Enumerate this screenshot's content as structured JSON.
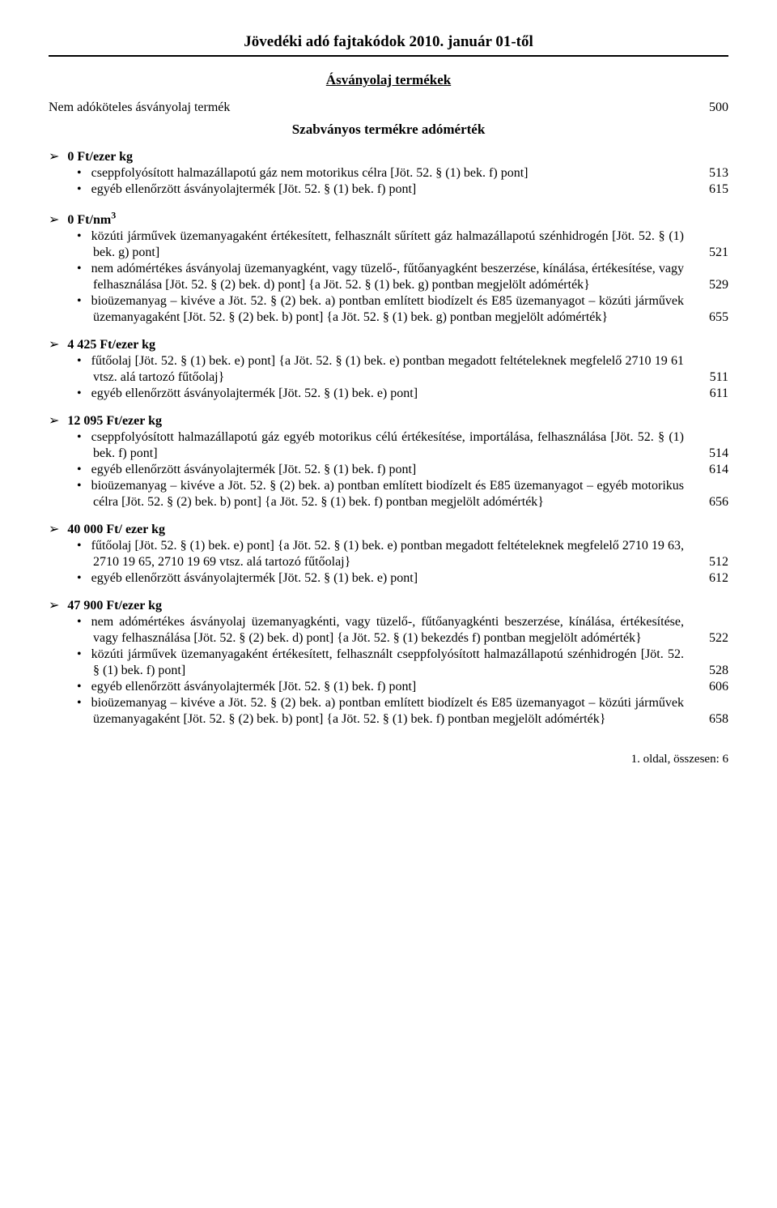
{
  "title": "Jövedéki adó fajtakódok 2010. január 01-től",
  "section_heading": "Ásványolaj termékek",
  "line1": {
    "label": "Nem adóköteles ásványolaj termék",
    "code": "500"
  },
  "standard_heading": "Szabványos termékre adómérték",
  "groups": [
    {
      "header": "0 Ft/ezer kg",
      "items": [
        {
          "text": "cseppfolyósított halmazállapotú gáz nem motorikus célra [Jöt. 52. § (1) bek. f) pont]",
          "code": "513"
        },
        {
          "text": "egyéb ellenőrzött ásványolajtermék [Jöt. 52. § (1) bek. f) pont]",
          "code": "615"
        }
      ]
    },
    {
      "header": "0 Ft/nm",
      "super": "3",
      "items": [
        {
          "text": "közúti járművek üzemanyagaként értékesített, felhasznált sűrített gáz halmazállapotú szénhidrogén [Jöt. 52. § (1) bek. g) pont]",
          "code": "521"
        },
        {
          "text": "nem adómértékes ásványolaj üzemanyagként, vagy tüzelő-, fűtőanyagként beszerzése, kínálása, értékesítése, vagy felhasználása [Jöt. 52. § (2) bek. d) pont] {a Jöt. 52. § (1) bek. g) pontban megjelölt adómérték}",
          "code": "529"
        },
        {
          "text": "bioüzemanyag – kivéve a Jöt. 52. § (2) bek. a) pontban említett biodízelt és E85 üzemanyagot – közúti járművek üzemanyagaként [Jöt. 52. § (2) bek. b) pont] {a Jöt. 52. § (1) bek. g) pontban megjelölt adómérték}",
          "code": "655"
        }
      ]
    },
    {
      "header": "4 425 Ft/ezer kg",
      "items": [
        {
          "text": "fűtőolaj [Jöt. 52. § (1) bek. e) pont] {a Jöt. 52. § (1) bek. e) pontban megadott feltételeknek megfelelő 2710 19 61 vtsz. alá tartozó fűtőolaj}",
          "code": "511"
        },
        {
          "text": "egyéb ellenőrzött ásványolajtermék [Jöt. 52. § (1) bek. e) pont]",
          "code": "611"
        }
      ]
    },
    {
      "header": "12 095 Ft/ezer kg",
      "items": [
        {
          "text": "cseppfolyósított halmazállapotú gáz egyéb motorikus célú értékesítése, importálása, felhasználása [Jöt. 52. § (1) bek. f) pont]",
          "code": "514"
        },
        {
          "text": "egyéb ellenőrzött ásványolajtermék [Jöt. 52. § (1) bek. f) pont]",
          "code": "614"
        },
        {
          "text": "bioüzemanyag – kivéve a Jöt. 52. § (2) bek. a) pontban említett biodízelt és E85 üzemanyagot – egyéb motorikus célra [Jöt. 52. § (2) bek. b) pont] {a Jöt. 52. § (1) bek. f) pontban megjelölt adómérték}",
          "code": "656"
        }
      ]
    },
    {
      "header": "40 000 Ft/ ezer kg",
      "items": [
        {
          "text": "fűtőolaj [Jöt. 52. § (1) bek. e) pont] {a Jöt. 52. § (1) bek. e) pontban megadott feltételeknek megfelelő 2710 19 63, 2710 19 65, 2710 19 69 vtsz. alá tartozó fűtőolaj}",
          "code": "512"
        },
        {
          "text": "egyéb ellenőrzött ásványolajtermék [Jöt. 52. § (1) bek. e) pont]",
          "code": "612"
        }
      ]
    },
    {
      "header": "47 900 Ft/ezer kg",
      "items": [
        {
          "text": "nem adómértékes ásványolaj üzemanyagkénti, vagy tüzelő-, fűtőanyagkénti beszerzése, kínálása, értékesítése, vagy felhasználása [Jöt. 52. § (2) bek. d) pont] {a Jöt. 52. § (1) bekezdés f) pontban megjelölt adómérték}",
          "code": "522"
        },
        {
          "text": "közúti járművek üzemanyagaként értékesített, felhasznált cseppfolyósított halmazállapotú szénhidrogén [Jöt. 52. § (1) bek. f) pont]",
          "code": "528"
        },
        {
          "text": "egyéb ellenőrzött ásványolajtermék [Jöt. 52. § (1) bek. f) pont]",
          "code": "606"
        },
        {
          "text": "bioüzemanyag – kivéve a Jöt. 52. § (2) bek. a) pontban említett biodízelt és E85 üzemanyagot – közúti járművek üzemanyagaként [Jöt. 52. § (2) bek. b) pont] {a Jöt. 52. § (1) bek. f) pontban megjelölt adómérték}",
          "code": "658"
        }
      ]
    }
  ],
  "footer": "1. oldal, összesen: 6"
}
